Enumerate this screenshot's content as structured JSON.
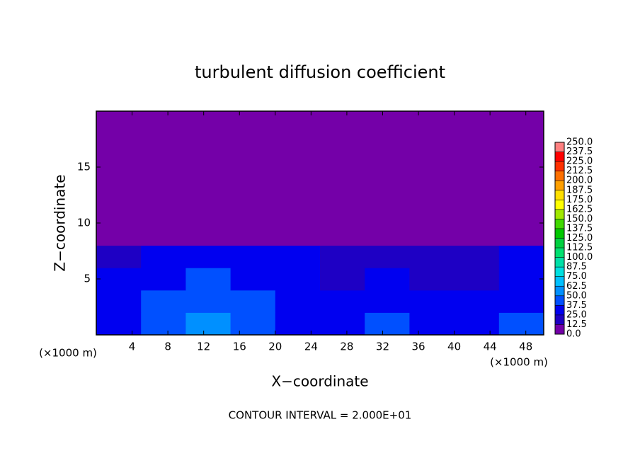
{
  "chart_data": {
    "type": "heatmap",
    "title": "turbulent diffusion coefficient",
    "x_label": "X−coordinate",
    "y_label": "Z−coordinate",
    "x_unit": "(×1000 m)",
    "y_unit": "(×1000 m)",
    "annotation": "CONTOUR INTERVAL = 2.000E+01",
    "xlim": [
      0,
      50
    ],
    "ylim": [
      0,
      20
    ],
    "xticks": [
      4,
      8,
      12,
      16,
      20,
      24,
      28,
      32,
      36,
      40,
      44,
      48
    ],
    "yticks": [
      5,
      10,
      15
    ],
    "x_edges": [
      0,
      5,
      10,
      15,
      20,
      25,
      30,
      35,
      40,
      45,
      50
    ],
    "z_edges": [
      0,
      2,
      4,
      6,
      8,
      9,
      20
    ],
    "values": [
      [
        30,
        45,
        60,
        40,
        35,
        30,
        40,
        35,
        30,
        40
      ],
      [
        25,
        40,
        45,
        40,
        25,
        25,
        35,
        30,
        25,
        30
      ],
      [
        25,
        35,
        40,
        35,
        25,
        20,
        30,
        15,
        20,
        30
      ],
      [
        20,
        25,
        30,
        25,
        25,
        15,
        20,
        15,
        15,
        25
      ],
      [
        10,
        5,
        5,
        5,
        5,
        0,
        5,
        5,
        5,
        10
      ],
      [
        0,
        0,
        0,
        0,
        0,
        0,
        0,
        0,
        0,
        0
      ]
    ],
    "colorbar": {
      "levels": [
        {
          "value": 0,
          "label": "0.0"
        },
        {
          "value": 12.5,
          "label": "12.5"
        },
        {
          "value": 25,
          "label": "25.0"
        },
        {
          "value": 37.5,
          "label": "37.5"
        },
        {
          "value": 50,
          "label": "50.0"
        },
        {
          "value": 62.5,
          "label": "62.5"
        },
        {
          "value": 75,
          "label": "75.0"
        },
        {
          "value": 87.5,
          "label": "87.5"
        },
        {
          "value": 100,
          "label": "100.0"
        },
        {
          "value": 112.5,
          "label": "112.5"
        },
        {
          "value": 125,
          "label": "125.0"
        },
        {
          "value": 137.5,
          "label": "137.5"
        },
        {
          "value": 150,
          "label": "150.0"
        },
        {
          "value": 162.5,
          "label": "162.5"
        },
        {
          "value": 175,
          "label": "175.0"
        },
        {
          "value": 187.5,
          "label": "187.5"
        },
        {
          "value": 200,
          "label": "200.0"
        },
        {
          "value": 212.5,
          "label": "212.5"
        },
        {
          "value": 225,
          "label": "225.0"
        },
        {
          "value": 237.5,
          "label": "237.5"
        },
        {
          "value": 250,
          "label": "250.0"
        }
      ],
      "colors": [
        "#7400a8",
        "#1e00c4",
        "#0000f0",
        "#0050ff",
        "#0090ff",
        "#00c0ff",
        "#00e0e0",
        "#00e0a8",
        "#00e070",
        "#00d040",
        "#00c800",
        "#40d800",
        "#a0e800",
        "#ffff00",
        "#ffe000",
        "#ffa000",
        "#ff7000",
        "#ff3000",
        "#ff0000",
        "#ff8080"
      ]
    }
  }
}
